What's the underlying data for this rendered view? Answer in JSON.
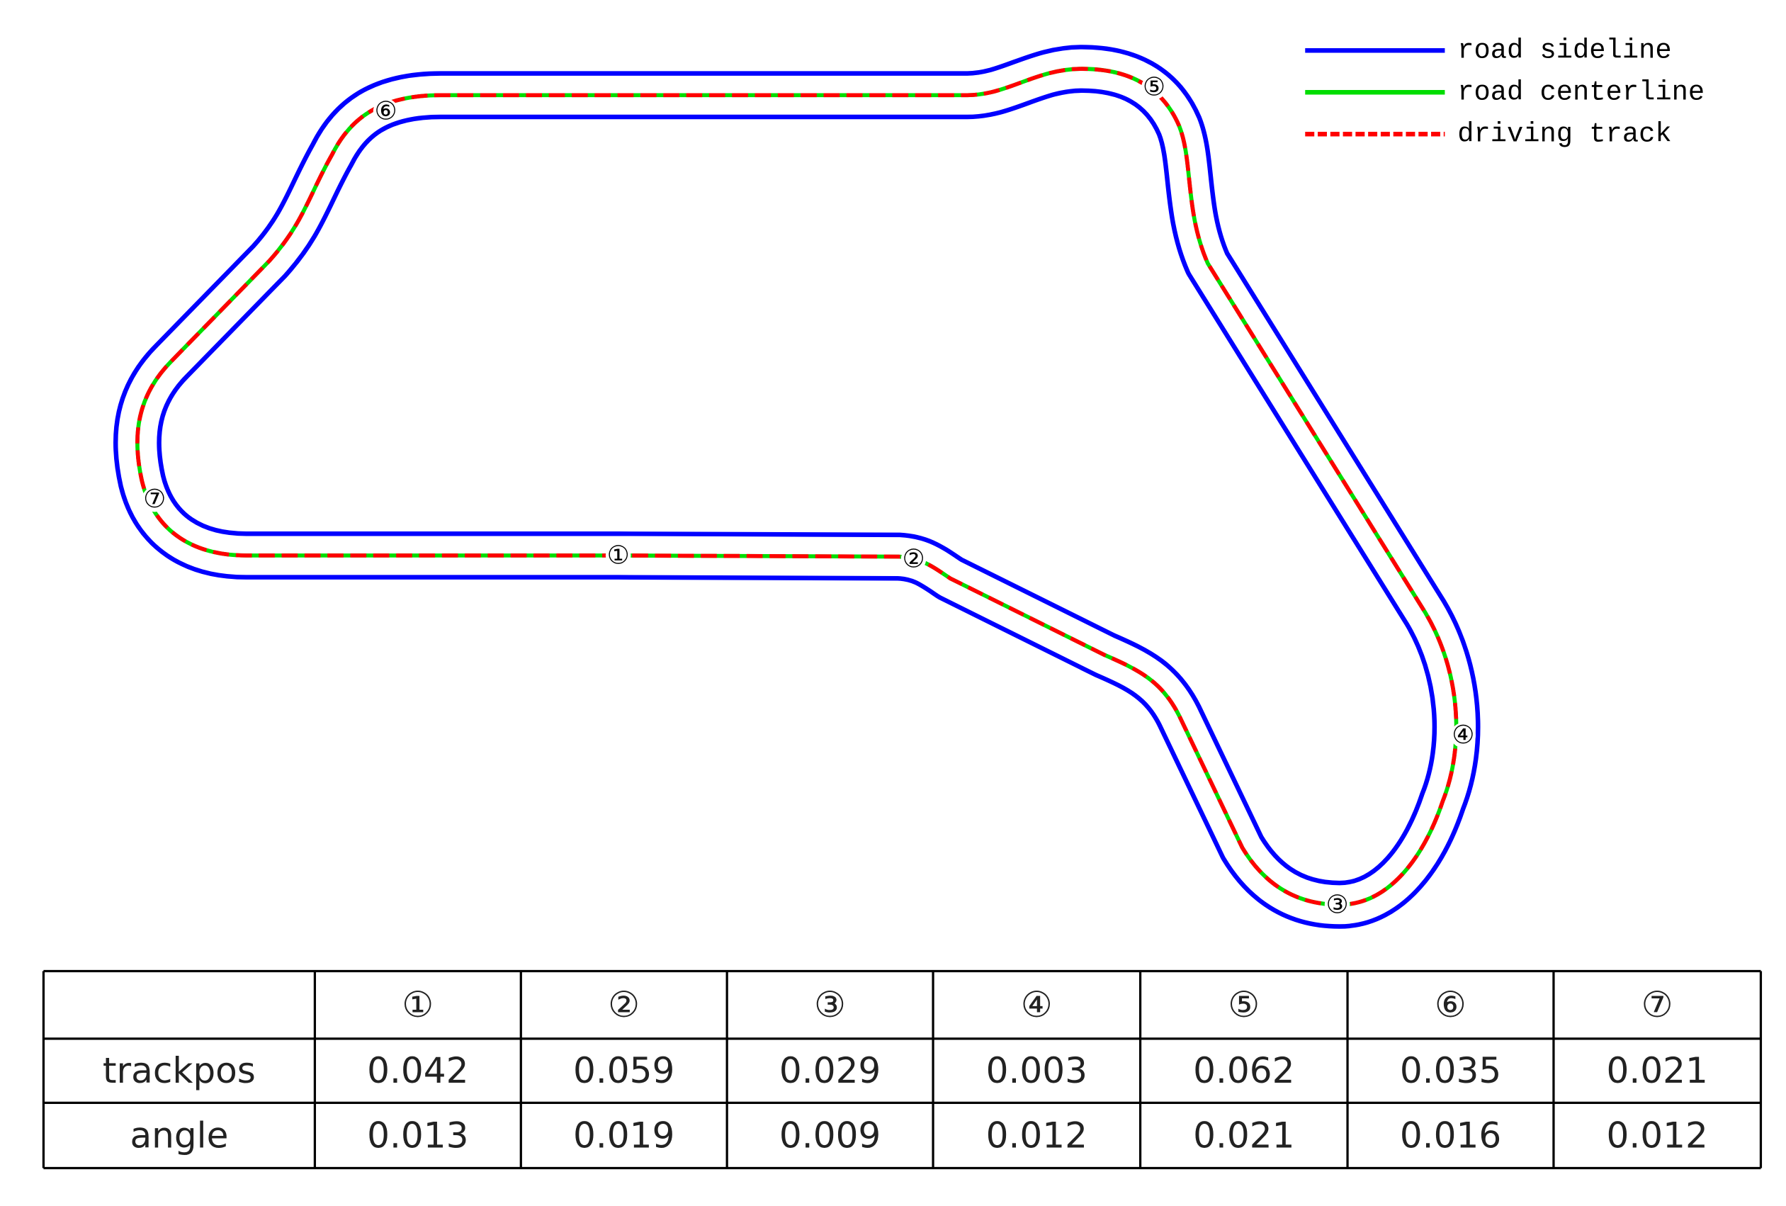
{
  "legend": [
    {
      "label": "road sideline",
      "color": "#0000ff"
    },
    {
      "label": "road centerline",
      "color": "#00dd00"
    },
    {
      "label": "driving track",
      "color": "#ff0000"
    }
  ],
  "markers": [
    {
      "label": "①"
    },
    {
      "label": "②"
    },
    {
      "label": "③"
    },
    {
      "label": "④"
    },
    {
      "label": "⑤"
    },
    {
      "label": "⑥"
    },
    {
      "label": "⑦"
    }
  ],
  "table": {
    "header": [
      "①",
      "②",
      "③",
      "④",
      "⑤",
      "⑥",
      "⑦"
    ],
    "rows": [
      {
        "label": "trackpos",
        "cells": [
          "0.042",
          "0.059",
          "0.029",
          "0.003",
          "0.062",
          "0.035",
          "0.021"
        ]
      },
      {
        "label": "angle",
        "cells": [
          "0.013",
          "0.019",
          "0.009",
          "0.012",
          "0.021",
          "0.016",
          "0.012"
        ]
      }
    ]
  }
}
